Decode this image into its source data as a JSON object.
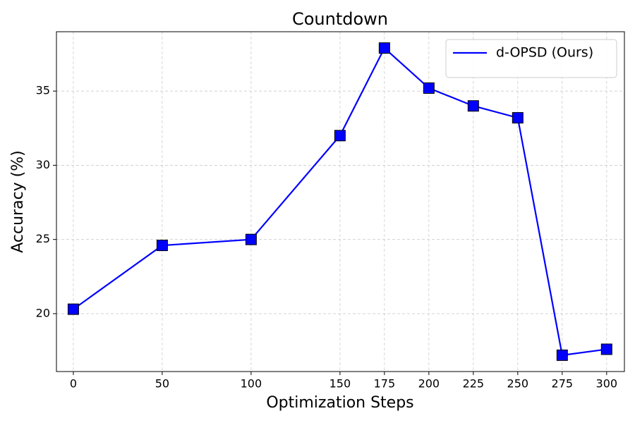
{
  "chart_data": {
    "type": "line",
    "title": "Countdown",
    "x_label": "Optimization Steps",
    "y_label": "Accuracy (%)",
    "x": [
      0,
      50,
      100,
      150,
      175,
      200,
      225,
      250,
      275,
      300
    ],
    "series": [
      {
        "name": "d-OPSD (Ours)",
        "color": "#0000ff",
        "values": [
          20.3,
          24.6,
          25.0,
          32.0,
          37.9,
          35.2,
          34.0,
          33.2,
          17.2,
          17.6
        ]
      }
    ],
    "xlim": [
      -9.5,
      310
    ],
    "ylim": [
      16.1,
      39
    ],
    "xticks": [
      0,
      50,
      100,
      150,
      175,
      200,
      225,
      250,
      275,
      300
    ],
    "yticks": [
      20,
      25,
      30,
      35
    ],
    "grid": true,
    "legend": "upper right"
  }
}
